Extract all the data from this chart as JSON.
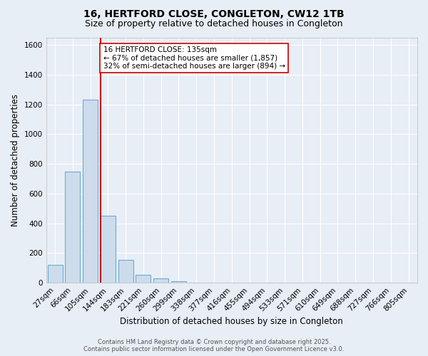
{
  "title": "16, HERTFORD CLOSE, CONGLETON, CW12 1TB",
  "subtitle": "Size of property relative to detached houses in Congleton",
  "xlabel": "Distribution of detached houses by size in Congleton",
  "ylabel": "Number of detached properties",
  "bar_labels": [
    "27sqm",
    "66sqm",
    "105sqm",
    "144sqm",
    "183sqm",
    "221sqm",
    "260sqm",
    "299sqm",
    "338sqm",
    "377sqm",
    "416sqm",
    "455sqm",
    "494sqm",
    "533sqm",
    "571sqm",
    "610sqm",
    "649sqm",
    "688sqm",
    "727sqm",
    "766sqm",
    "805sqm"
  ],
  "bar_values": [
    120,
    750,
    1230,
    450,
    155,
    55,
    32,
    12,
    0,
    0,
    0,
    0,
    0,
    0,
    0,
    0,
    0,
    0,
    0,
    0,
    0
  ],
  "bar_color": "#cddcec",
  "bar_edgecolor": "#6aaad4",
  "vline_color": "#cc0000",
  "vline_pos": 2.575,
  "annotation_text": "16 HERTFORD CLOSE: 135sqm\n← 67% of detached houses are smaller (1,857)\n32% of semi-detached houses are larger (894) →",
  "annotation_box_edgecolor": "#cc0000",
  "annotation_box_facecolor": "white",
  "ylim": [
    0,
    1650
  ],
  "yticks": [
    0,
    200,
    400,
    600,
    800,
    1000,
    1200,
    1400,
    1600
  ],
  "background_color": "#e8eef5",
  "plot_background": "#e8eef5",
  "grid_color": "white",
  "footer_line1": "Contains HM Land Registry data © Crown copyright and database right 2025.",
  "footer_line2": "Contains public sector information licensed under the Open Government Licence v3.0.",
  "title_fontsize": 10,
  "subtitle_fontsize": 9,
  "axis_label_fontsize": 8.5,
  "tick_fontsize": 7.5,
  "annotation_fontsize": 7.5
}
